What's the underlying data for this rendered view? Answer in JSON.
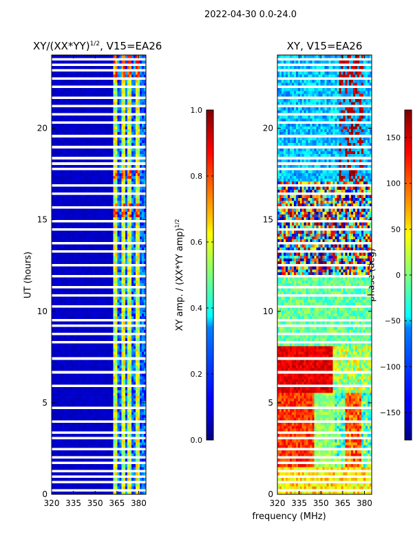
{
  "figure": {
    "suptitle": "2022-04-30 0.0-24.0",
    "xlabel": "frequency (MHz)"
  },
  "chart_data": [
    {
      "type": "heatmap",
      "title": "XY/(XX*YY)^{1/2}, V15=EA26",
      "title_main": "XY/(XX*YY)",
      "title_sup": "1/2",
      "title_tail": ", V15=EA26",
      "xlabel": "frequency (MHz)",
      "ylabel": "UT (hours)",
      "xlim": [
        320,
        385
      ],
      "ylim": [
        0,
        24
      ],
      "xticks": [
        320,
        335,
        350,
        365,
        380
      ],
      "yticks": [
        0,
        5,
        10,
        15,
        20
      ],
      "colorbar": {
        "label": "XY amp. / (XX*YY amp)^{1/2}",
        "label_main": "XY amp. / (XX*YY amp)",
        "label_sup": "1/2",
        "range": [
          0.0,
          1.0
        ],
        "ticks": [
          "0.0",
          "0.2",
          "0.4",
          "0.6",
          "0.8",
          "1.0"
        ],
        "tick_values": [
          0.0,
          0.2,
          0.4,
          0.6,
          0.8,
          1.0
        ]
      }
    },
    {
      "type": "heatmap",
      "title": "XY, V15=EA26",
      "xlabel": "frequency (MHz)",
      "ylabel": "",
      "xlim": [
        320,
        385
      ],
      "ylim": [
        0,
        24
      ],
      "xticks": [
        320,
        335,
        350,
        365,
        380
      ],
      "yticks": [
        0,
        5,
        10,
        15,
        20
      ],
      "colorbar": {
        "label": "phase (deg)",
        "range": [
          -180,
          180
        ],
        "ticks": [
          "150",
          "100",
          "50",
          "0",
          "−50",
          "−100",
          "−150"
        ],
        "tick_values": [
          150,
          100,
          50,
          0,
          -50,
          -100,
          -150
        ]
      }
    }
  ],
  "colors": {
    "jet_low": "#00007f",
    "jet_high": "#7f0000",
    "flag": "#ffffff"
  }
}
